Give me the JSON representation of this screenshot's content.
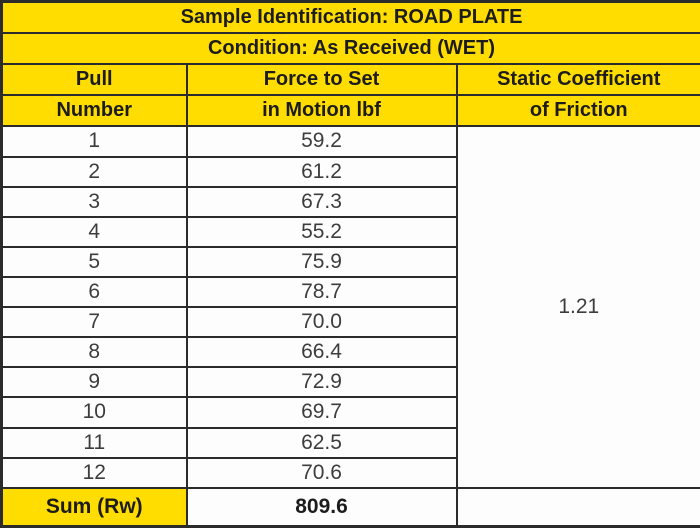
{
  "table": {
    "title": "Sample Identification: ROAD PLATE",
    "condition": "Condition: As Received (WET)",
    "columns": {
      "pull_line1": "Pull",
      "pull_line2": "Number",
      "force_line1": "Force to Set",
      "force_line2": "in Motion lbf",
      "coef_line1": "Static Coefficient",
      "coef_line2": "of Friction"
    },
    "rows": [
      {
        "pull": "1",
        "force": "59.2"
      },
      {
        "pull": "2",
        "force": "61.2"
      },
      {
        "pull": "3",
        "force": "67.3"
      },
      {
        "pull": "4",
        "force": "55.2"
      },
      {
        "pull": "5",
        "force": "75.9"
      },
      {
        "pull": "6",
        "force": "78.7"
      },
      {
        "pull": "7",
        "force": "70.0"
      },
      {
        "pull": "8",
        "force": "66.4"
      },
      {
        "pull": "9",
        "force": "72.9"
      },
      {
        "pull": "10",
        "force": "69.7"
      },
      {
        "pull": "11",
        "force": "62.5"
      },
      {
        "pull": "12",
        "force": "70.6"
      }
    ],
    "static_coefficient": "1.21",
    "sum": {
      "label": "Sum (Rw)",
      "value": "809.6"
    },
    "colors": {
      "header_yellow": "#ffdd00",
      "grid_border": "#2b2b2b",
      "header_text": "#1c1c1c",
      "data_text": "#3d3d3d",
      "cell_background": "#fdfdfd"
    }
  }
}
